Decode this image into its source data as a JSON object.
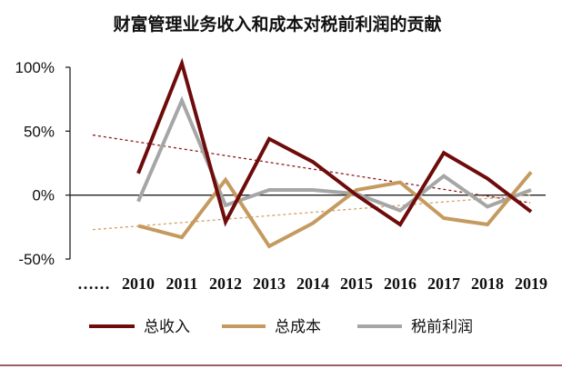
{
  "chart_data": {
    "type": "line",
    "title": "财富管理业务收入和成本对税前利润的贡献",
    "xlabel": "",
    "ylabel": "",
    "x_prefix_label": "……",
    "categories": [
      "2010",
      "2011",
      "2012",
      "2013",
      "2014",
      "2015",
      "2016",
      "2017",
      "2018",
      "2019"
    ],
    "ylim": [
      -50,
      100
    ],
    "yticks": [
      -50,
      0,
      50,
      100
    ],
    "ytick_labels": [
      "-50%",
      "0%",
      "50%",
      "100%"
    ],
    "grid": false,
    "legend_position": "bottom",
    "series": [
      {
        "name": "总收入",
        "color": "#6e0b0b",
        "values": [
          17,
          103,
          -21,
          44,
          26,
          0,
          -23,
          33,
          13,
          -13
        ]
      },
      {
        "name": "总成本",
        "color": "#c59a5f",
        "values": [
          -24,
          -33,
          12,
          -40,
          -22,
          4,
          10,
          -18,
          -23,
          18
        ]
      },
      {
        "name": "税前利润",
        "color": "#a6a6a6",
        "values": [
          -5,
          74,
          -8,
          4,
          4,
          1,
          -12,
          15,
          -9,
          4
        ]
      }
    ],
    "trendlines": [
      {
        "series": "总收入",
        "color": "#8b1a1a",
        "style": "dashed",
        "start": 47,
        "end": -6
      },
      {
        "series": "总成本",
        "color": "#d4a063",
        "style": "dashed",
        "start": -27,
        "end": 0
      }
    ]
  }
}
